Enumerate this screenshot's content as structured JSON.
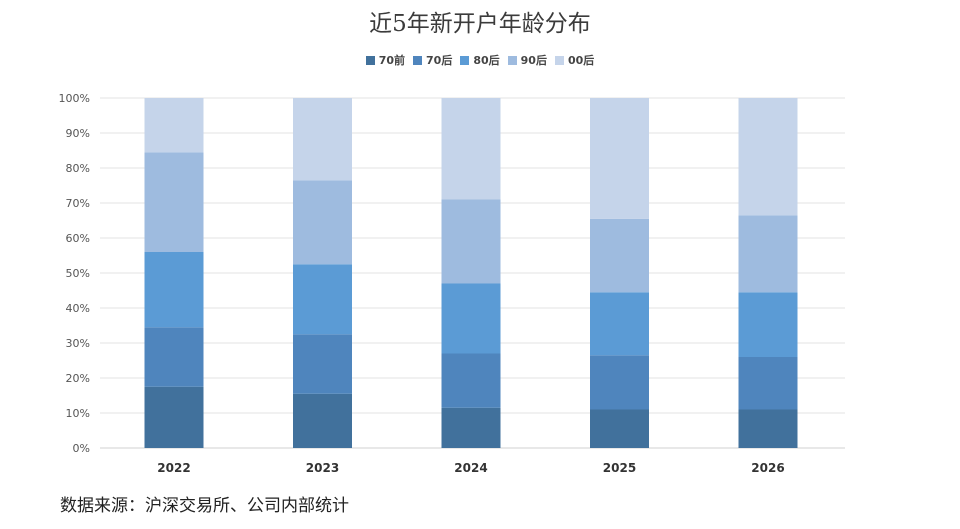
{
  "chart_data": {
    "type": "bar",
    "stacked": true,
    "title": "近5年新开户年龄分布",
    "xlabel": "",
    "ylabel": "",
    "categories": [
      "2022",
      "2023",
      "2024",
      "2025",
      "2026"
    ],
    "ylim": [
      0,
      100
    ],
    "yticks": [
      "0%",
      "10%",
      "20%",
      "30%",
      "40%",
      "50%",
      "60%",
      "70%",
      "80%",
      "90%",
      "100%"
    ],
    "grid": true,
    "legend_position": "top",
    "series": [
      {
        "name": "70前",
        "color": "#41719c",
        "values": [
          17.5,
          15.5,
          11.5,
          11,
          11
        ]
      },
      {
        "name": "70后",
        "color": "#4f85bd",
        "values": [
          17,
          17,
          15.5,
          15.5,
          15
        ]
      },
      {
        "name": "80后",
        "color": "#5b9bd5",
        "values": [
          21.5,
          20,
          20,
          18,
          18.5
        ]
      },
      {
        "name": "90后",
        "color": "#9ebbdf",
        "values": [
          28.5,
          24,
          24,
          21,
          22
        ]
      },
      {
        "name": "00后",
        "color": "#c5d4ea",
        "values": [
          15.5,
          23.5,
          29,
          34.5,
          33.5
        ]
      }
    ]
  },
  "source_note": "数据来源：沪深交易所、公司内部统计"
}
